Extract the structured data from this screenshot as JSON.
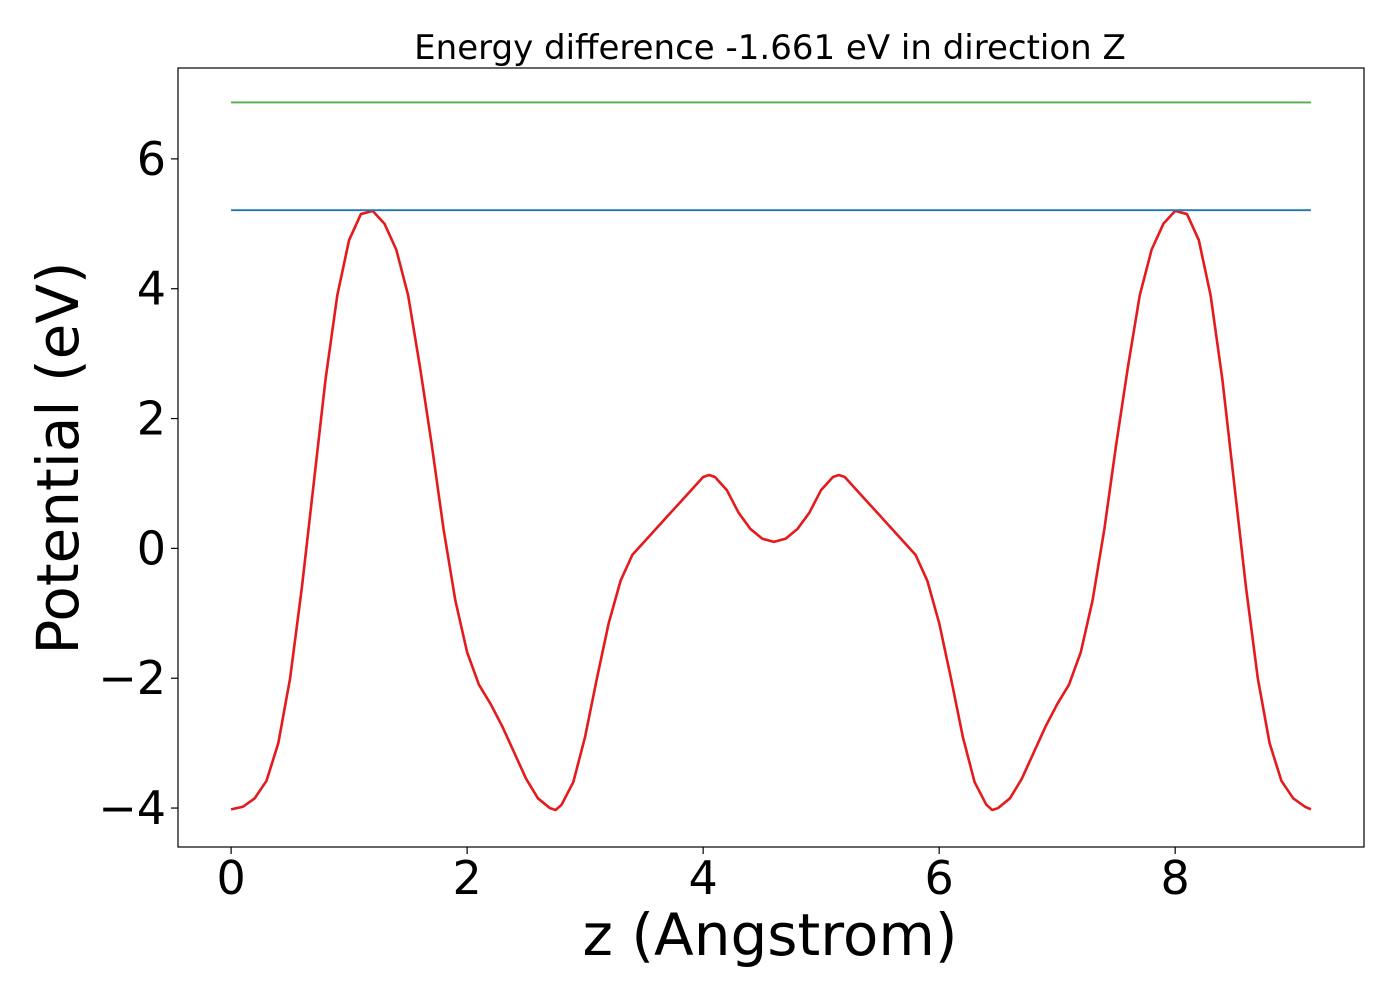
{
  "chart_data": {
    "type": "line",
    "title": "Energy difference -1.661 eV in direction Z",
    "xlabel": "z (Angstrom)",
    "ylabel": "Potential (eV)",
    "xlim": [
      -0.45,
      9.6
    ],
    "ylim": [
      -4.6,
      7.4
    ],
    "grid": false,
    "x_ticks": [
      0,
      2,
      4,
      6,
      8
    ],
    "x_tick_labels": [
      "0",
      "2",
      "4",
      "6",
      "8"
    ],
    "y_ticks": [
      -4,
      -2,
      0,
      2,
      4,
      6
    ],
    "y_tick_labels": [
      "−4",
      "−2",
      "0",
      "2",
      "4",
      "6"
    ],
    "series": [
      {
        "color": "#e41a1c",
        "points": [
          [
            0.0,
            -4.02
          ],
          [
            0.1,
            -3.98
          ],
          [
            0.2,
            -3.85
          ],
          [
            0.3,
            -3.58
          ],
          [
            0.4,
            -3.0
          ],
          [
            0.5,
            -2.0
          ],
          [
            0.6,
            -0.6
          ],
          [
            0.7,
            1.0
          ],
          [
            0.8,
            2.6
          ],
          [
            0.9,
            3.9
          ],
          [
            1.0,
            4.75
          ],
          [
            1.1,
            5.15
          ],
          [
            1.2,
            5.2
          ],
          [
            1.3,
            5.0
          ],
          [
            1.4,
            4.6
          ],
          [
            1.5,
            3.9
          ],
          [
            1.6,
            2.8
          ],
          [
            1.7,
            1.6
          ],
          [
            1.8,
            0.3
          ],
          [
            1.9,
            -0.8
          ],
          [
            2.0,
            -1.6
          ],
          [
            2.1,
            -2.1
          ],
          [
            2.2,
            -2.4
          ],
          [
            2.3,
            -2.75
          ],
          [
            2.4,
            -3.15
          ],
          [
            2.5,
            -3.55
          ],
          [
            2.6,
            -3.85
          ],
          [
            2.7,
            -4.0
          ],
          [
            2.75,
            -4.03
          ],
          [
            2.8,
            -3.95
          ],
          [
            2.9,
            -3.6
          ],
          [
            3.0,
            -2.9
          ],
          [
            3.1,
            -2.0
          ],
          [
            3.2,
            -1.15
          ],
          [
            3.3,
            -0.5
          ],
          [
            3.4,
            -0.1
          ],
          [
            3.5,
            0.1
          ],
          [
            3.6,
            0.3
          ],
          [
            3.7,
            0.5
          ],
          [
            3.8,
            0.7
          ],
          [
            3.9,
            0.9
          ],
          [
            4.0,
            1.1
          ],
          [
            4.05,
            1.13
          ],
          [
            4.1,
            1.1
          ],
          [
            4.2,
            0.9
          ],
          [
            4.3,
            0.55
          ],
          [
            4.4,
            0.3
          ],
          [
            4.5,
            0.15
          ],
          [
            4.6,
            0.1
          ],
          [
            4.7,
            0.15
          ],
          [
            4.8,
            0.3
          ],
          [
            4.9,
            0.55
          ],
          [
            5.0,
            0.9
          ],
          [
            5.1,
            1.1
          ],
          [
            5.15,
            1.13
          ],
          [
            5.2,
            1.1
          ],
          [
            5.3,
            0.9
          ],
          [
            5.4,
            0.7
          ],
          [
            5.5,
            0.5
          ],
          [
            5.6,
            0.3
          ],
          [
            5.7,
            0.1
          ],
          [
            5.8,
            -0.1
          ],
          [
            5.9,
            -0.5
          ],
          [
            6.0,
            -1.15
          ],
          [
            6.1,
            -2.0
          ],
          [
            6.2,
            -2.9
          ],
          [
            6.3,
            -3.6
          ],
          [
            6.4,
            -3.95
          ],
          [
            6.45,
            -4.03
          ],
          [
            6.5,
            -4.0
          ],
          [
            6.6,
            -3.85
          ],
          [
            6.7,
            -3.55
          ],
          [
            6.8,
            -3.15
          ],
          [
            6.9,
            -2.75
          ],
          [
            7.0,
            -2.4
          ],
          [
            7.1,
            -2.1
          ],
          [
            7.2,
            -1.6
          ],
          [
            7.3,
            -0.8
          ],
          [
            7.4,
            0.3
          ],
          [
            7.5,
            1.6
          ],
          [
            7.6,
            2.8
          ],
          [
            7.7,
            3.9
          ],
          [
            7.8,
            4.6
          ],
          [
            7.9,
            5.0
          ],
          [
            8.0,
            5.2
          ],
          [
            8.1,
            5.15
          ],
          [
            8.2,
            4.75
          ],
          [
            8.3,
            3.9
          ],
          [
            8.4,
            2.6
          ],
          [
            8.5,
            1.0
          ],
          [
            8.6,
            -0.6
          ],
          [
            8.7,
            -2.0
          ],
          [
            8.8,
            -3.0
          ],
          [
            8.9,
            -3.58
          ],
          [
            9.0,
            -3.85
          ],
          [
            9.1,
            -3.98
          ],
          [
            9.15,
            -4.02
          ]
        ]
      },
      {
        "color": "#1f77b4",
        "points": [
          [
            0.0,
            5.21
          ],
          [
            9.15,
            5.21
          ]
        ]
      },
      {
        "color": "#4daf4a",
        "points": [
          [
            0.0,
            6.87
          ],
          [
            9.15,
            6.87
          ]
        ]
      }
    ]
  }
}
